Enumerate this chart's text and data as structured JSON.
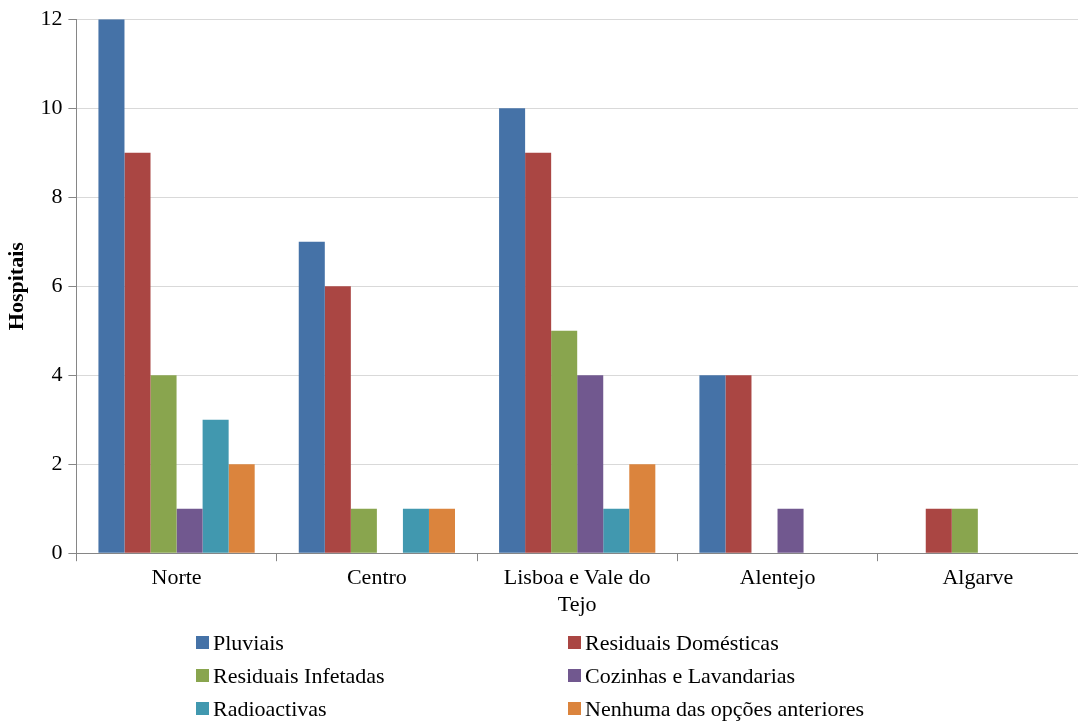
{
  "chart_data": {
    "type": "bar",
    "ylabel": "Hospitais",
    "categories": [
      "Norte",
      "Centro",
      "Lisboa e Vale do Tejo",
      "Alentejo",
      "Algarve"
    ],
    "series": [
      {
        "name": "Pluviais",
        "color": "#4572a7",
        "values": [
          12,
          7,
          10,
          4,
          0
        ]
      },
      {
        "name": "Residuais Domésticas",
        "color": "#aa4643",
        "values": [
          9,
          6,
          9,
          4,
          1
        ]
      },
      {
        "name": "Residuais Infetadas",
        "color": "#89a54e",
        "values": [
          4,
          1,
          5,
          0,
          1
        ]
      },
      {
        "name": "Cozinhas e Lavandarias",
        "color": "#71588f",
        "values": [
          1,
          0,
          4,
          1,
          0
        ]
      },
      {
        "name": "Radioactivas",
        "color": "#4198af",
        "values": [
          3,
          1,
          1,
          0,
          0
        ]
      },
      {
        "name": "Nenhuma das opções anteriores",
        "color": "#db843d",
        "values": [
          2,
          1,
          2,
          0,
          0
        ]
      }
    ],
    "ylim": [
      0,
      12
    ],
    "yticks": [
      0,
      2,
      4,
      6,
      8,
      10,
      12
    ],
    "grid": "y",
    "legend": "bottom"
  }
}
